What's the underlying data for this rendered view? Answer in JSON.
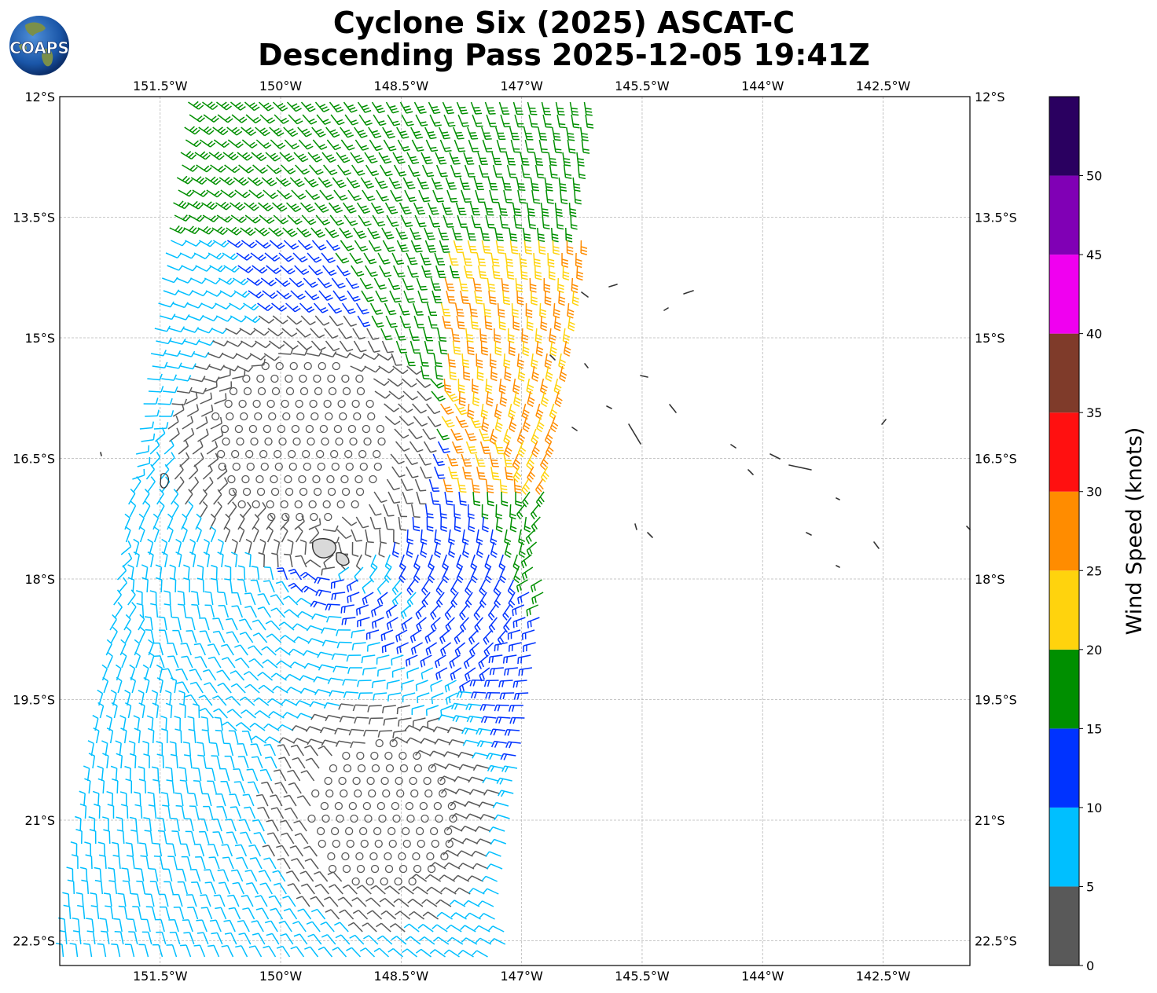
{
  "title_line1": "Cyclone Six (2025) ASCAT-C",
  "title_line2": "Descending Pass 2025-12-05 19:41Z",
  "logo_text": "COAPS",
  "map": {
    "lon_range": [
      -152.9,
      -145.3
    ],
    "lat_range": [
      -22.8,
      -12.0
    ],
    "lon_ticks": [
      {
        "value": -151.5,
        "label": "151.5°W"
      },
      {
        "value": -150.0,
        "label": "150°W"
      },
      {
        "value": -148.5,
        "label": "148.5°W"
      },
      {
        "value": -147.0,
        "label": "147°W"
      },
      {
        "value": -145.5,
        "label": "145.5°W"
      },
      {
        "value": -144.0,
        "label": "144°W"
      },
      {
        "value": -142.5,
        "label": "142.5°W"
      }
    ],
    "lat_ticks": [
      {
        "value": -12.0,
        "label": "12°S"
      },
      {
        "value": -13.5,
        "label": "13.5°S"
      },
      {
        "value": -15.0,
        "label": "15°S"
      },
      {
        "value": -16.5,
        "label": "16.5°S"
      },
      {
        "value": -18.0,
        "label": "18°S"
      },
      {
        "value": -19.5,
        "label": "19.5°S"
      },
      {
        "value": -21.0,
        "label": "21°S"
      },
      {
        "value": -22.5,
        "label": "22.5°S"
      }
    ],
    "grid": true,
    "swath_note_hidden": ""
  },
  "colorbar": {
    "label": "Wind Speed (knots)",
    "bins": [
      {
        "from": 0,
        "to": 5,
        "color": "#595959"
      },
      {
        "from": 5,
        "to": 10,
        "color": "#00bfff"
      },
      {
        "from": 10,
        "to": 15,
        "color": "#0033ff"
      },
      {
        "from": 15,
        "to": 20,
        "color": "#008f00"
      },
      {
        "from": 20,
        "to": 25,
        "color": "#ffd30d"
      },
      {
        "from": 25,
        "to": 30,
        "color": "#ff8c00"
      },
      {
        "from": 30,
        "to": 35,
        "color": "#ff1010"
      },
      {
        "from": 35,
        "to": 40,
        "color": "#7f3b2a"
      },
      {
        "from": 40,
        "to": 45,
        "color": "#f000f0"
      },
      {
        "from": 45,
        "to": 50,
        "color": "#8000b5"
      },
      {
        "from": 50,
        "to": 55,
        "color": "#2a0060"
      }
    ],
    "ticks": [
      "0",
      "5",
      "10",
      "15",
      "20",
      "25",
      "30",
      "35",
      "40",
      "45",
      "50"
    ]
  }
}
